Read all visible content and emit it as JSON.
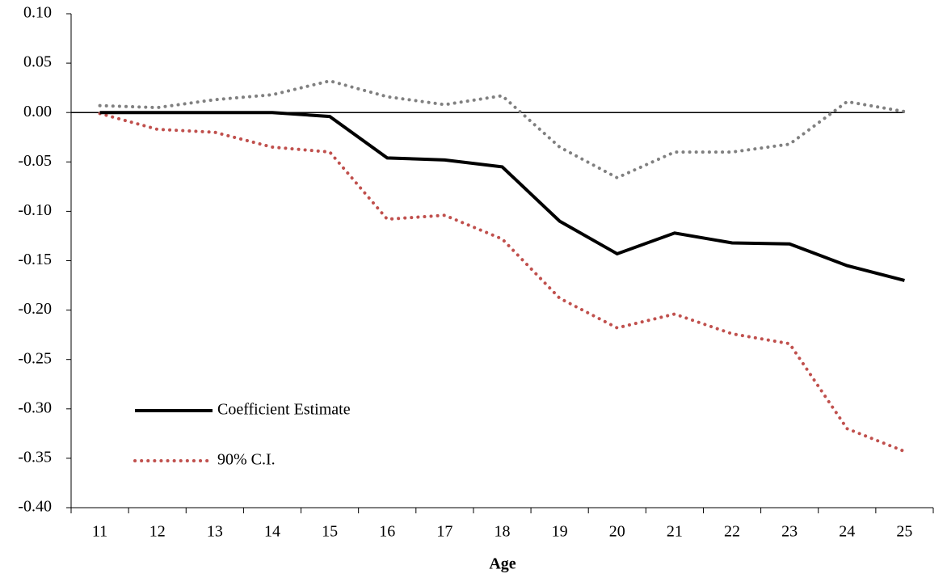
{
  "chart_data": {
    "type": "line",
    "xlabel": "Age",
    "categories": [
      "11",
      "12",
      "13",
      "14",
      "15",
      "16",
      "17",
      "18",
      "19",
      "20",
      "21",
      "22",
      "23",
      "24",
      "25"
    ],
    "series": [
      {
        "name": "Coefficient Estimate",
        "color": "#000000",
        "style": "solid",
        "values": [
          0,
          0,
          0,
          0,
          -0.004,
          -0.046,
          -0.048,
          -0.055,
          -0.11,
          -0.143,
          -0.122,
          -0.132,
          -0.133,
          -0.155,
          -0.17
        ]
      },
      {
        "name": "90% C.I.",
        "color": "#c0504d",
        "style": "dotted",
        "values": [
          -0.001,
          -0.017,
          -0.02,
          -0.035,
          -0.04,
          -0.108,
          -0.104,
          -0.128,
          -0.188,
          -0.218,
          -0.204,
          -0.224,
          -0.234,
          -0.32,
          -0.343
        ]
      },
      {
        "color": "#808080",
        "style": "dotted",
        "values": [
          0.007,
          0.005,
          0.013,
          0.018,
          0.032,
          0.016,
          0.008,
          0.017,
          -0.035,
          -0.066,
          -0.04,
          -0.04,
          -0.032,
          0.011,
          0.001
        ]
      }
    ],
    "ylim": [
      -0.4,
      0.1
    ],
    "yticks": [
      {
        "value": 0.1,
        "label": "0.10"
      },
      {
        "value": 0.05,
        "label": "0.05"
      },
      {
        "value": 0,
        "label": "0.00"
      },
      {
        "value": -0.05,
        "label": "-0.05"
      },
      {
        "value": -0.1,
        "label": "-0.10"
      },
      {
        "value": -0.15,
        "label": "-0.15"
      },
      {
        "value": -0.2,
        "label": "-0.20"
      },
      {
        "value": -0.25,
        "label": "-0.25"
      },
      {
        "value": -0.3,
        "label": "-0.30"
      },
      {
        "value": -0.35,
        "label": "-0.35"
      },
      {
        "value": -0.4,
        "label": "-0.40"
      }
    ],
    "legend": "lower-left"
  }
}
